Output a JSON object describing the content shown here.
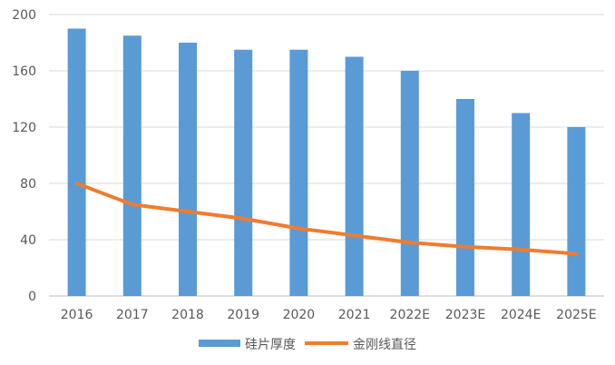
{
  "chart_data": {
    "type": "bar",
    "categories": [
      "2016",
      "2017",
      "2018",
      "2019",
      "2020",
      "2021",
      "2022E",
      "2023E",
      "2024E",
      "2025E"
    ],
    "series": [
      {
        "name": "硅片厚度",
        "kind": "bar",
        "color": "#5B9BD5",
        "values": [
          190,
          185,
          180,
          175,
          175,
          170,
          160,
          140,
          130,
          120
        ]
      },
      {
        "name": "金刚线直径",
        "kind": "line",
        "color": "#ED7D31",
        "values": [
          80,
          65,
          60,
          55,
          48,
          43,
          38,
          35,
          33,
          30
        ]
      }
    ],
    "ylim": [
      0,
      200
    ],
    "yticks": [
      "0",
      "40",
      "80",
      "120",
      "160",
      "200"
    ],
    "grid": true,
    "legend": "bottom",
    "title": "",
    "xlabel": "",
    "ylabel": ""
  }
}
